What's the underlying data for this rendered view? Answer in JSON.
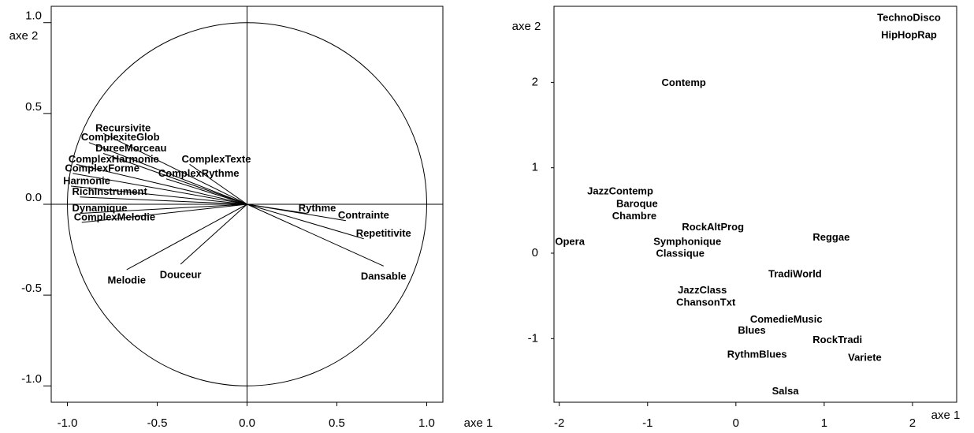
{
  "chart_data": [
    {
      "type": "vectors",
      "xlabel": "axe 1",
      "ylabel": "axe 2",
      "labels": [
        "Recursivite",
        "ComplexiteGlob",
        "DureeMorceau",
        "ComplexHarmonie",
        "ComplexForme",
        "Harmonie",
        "RichInstrument",
        "Dynamique",
        "ComplexMelodie",
        "Melodie",
        "Douceur",
        "ComplexTexte",
        "ComplexRythme",
        "Rythme",
        "Contrainte",
        "Repetitivite",
        "Dansable"
      ],
      "x": [
        -0.8,
        -0.88,
        -0.8,
        -0.95,
        -0.97,
        -0.98,
        -0.93,
        -0.93,
        -0.92,
        -0.67,
        -0.37,
        -0.32,
        -0.45,
        0.33,
        0.55,
        0.65,
        0.76
      ],
      "values": [
        0.39,
        0.34,
        0.28,
        0.22,
        0.17,
        0.1,
        0.04,
        -0.05,
        -0.1,
        -0.36,
        -0.33,
        0.22,
        0.14,
        -0.05,
        -0.09,
        -0.19,
        -0.34
      ],
      "xlim": [
        -1.09,
        1.09
      ],
      "ylim": [
        -1.09,
        1.09
      ],
      "xticks": [
        {
          "value": -1,
          "label": "-1.0"
        },
        -0.5,
        {
          "value": 0,
          "label": "0.0"
        },
        0.5,
        {
          "value": 1,
          "label": "1.0"
        }
      ],
      "yticks": [
        {
          "value": -1,
          "label": "-1.0"
        },
        -0.5,
        {
          "value": 0,
          "label": "0.0"
        },
        0.5,
        {
          "value": 1,
          "label": "1.0"
        }
      ],
      "color": "#000000"
    },
    {
      "type": "scatter",
      "xlabel": "axe 1",
      "ylabel": "axe 2",
      "labels": [
        "TechnoDisco",
        "HipHopRap",
        "Contemp",
        "JazzContemp",
        "Baroque",
        "Chambre",
        "RockAltProg",
        "Reggae",
        "Opera",
        "Symphonique",
        "Classique",
        "TradiWorld",
        "JazzClass",
        "ChansonTxt",
        "ComedieMusic",
        "Blues",
        "RockTradi",
        "RythmBlues",
        "Variete",
        "Salsa"
      ],
      "x": [
        1.96,
        1.96,
        -0.59,
        -1.31,
        -1.12,
        -1.15,
        -0.26,
        1.08,
        -1.88,
        -0.55,
        -0.63,
        0.67,
        -0.38,
        -0.34,
        0.57,
        0.18,
        1.15,
        0.24,
        1.46,
        0.56
      ],
      "values": [
        2.75,
        2.55,
        1.99,
        0.72,
        0.57,
        0.43,
        0.3,
        0.18,
        0.13,
        0.13,
        -0.01,
        -0.25,
        -0.44,
        -0.58,
        -0.78,
        -0.91,
        -1.02,
        -1.19,
        -1.23,
        -1.62
      ],
      "xlim": [
        -2.06,
        2.5
      ],
      "ylim": [
        -1.745,
        2.89
      ],
      "xticks": [
        -2,
        -1,
        0,
        1,
        2
      ],
      "yticks": [
        -1,
        0,
        1,
        2
      ],
      "color": "#000000"
    }
  ]
}
